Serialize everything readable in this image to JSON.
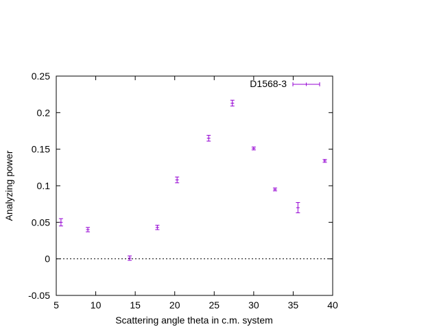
{
  "chart_data": {
    "type": "scatter",
    "title": "",
    "xlabel": "Scattering angle theta in c.m. system",
    "ylabel": "Analyzing power",
    "xlim": [
      5,
      40
    ],
    "ylim": [
      -0.05,
      0.25
    ],
    "xticks": [
      5,
      10,
      15,
      20,
      25,
      30,
      35,
      40
    ],
    "yticks": [
      -0.05,
      0,
      0.05,
      0.1,
      0.15,
      0.2,
      0.25
    ],
    "xtick_labels": [
      "5",
      "10",
      "15",
      "20",
      "25",
      "30",
      "35",
      "40"
    ],
    "ytick_labels": [
      "-0.05",
      "0",
      "0.05",
      "0.1",
      "0.15",
      "0.2",
      "0.25"
    ],
    "zero_line": true,
    "grid": false,
    "legend_position": "top-right",
    "series": [
      {
        "name": "D1568-3",
        "color": "#9400d3",
        "points": [
          {
            "x": 5.6,
            "y": 0.05,
            "err": 0.005
          },
          {
            "x": 9.0,
            "y": 0.04,
            "err": 0.003
          },
          {
            "x": 14.3,
            "y": 0.001,
            "err": 0.003
          },
          {
            "x": 17.8,
            "y": 0.043,
            "err": 0.003
          },
          {
            "x": 20.3,
            "y": 0.108,
            "err": 0.004
          },
          {
            "x": 24.3,
            "y": 0.165,
            "err": 0.004
          },
          {
            "x": 27.3,
            "y": 0.213,
            "err": 0.004
          },
          {
            "x": 30.0,
            "y": 0.151,
            "err": 0.002
          },
          {
            "x": 32.7,
            "y": 0.095,
            "err": 0.002
          },
          {
            "x": 35.6,
            "y": 0.07,
            "err": 0.007
          },
          {
            "x": 39.0,
            "y": 0.134,
            "err": 0.002
          }
        ]
      }
    ]
  }
}
